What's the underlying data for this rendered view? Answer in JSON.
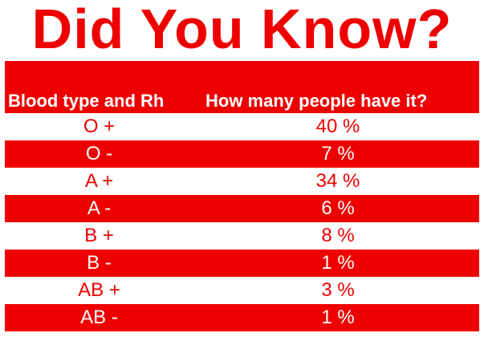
{
  "title": "Did You Know?",
  "table": {
    "headers": [
      "Blood type and Rh",
      "How many people have it?"
    ],
    "rows": [
      {
        "type": "O +",
        "share": "40 %"
      },
      {
        "type": "O -",
        "share": "7 %"
      },
      {
        "type": "A +",
        "share": "34 %"
      },
      {
        "type": "A -",
        "share": "6 %"
      },
      {
        "type": "B +",
        "share": "8 %"
      },
      {
        "type": "B -",
        "share": "1 %"
      },
      {
        "type": "AB +",
        "share": "3 %"
      },
      {
        "type": "AB -",
        "share": "1 %"
      }
    ]
  },
  "colors": {
    "accent": "#ee0000",
    "background": "#ffffff"
  }
}
